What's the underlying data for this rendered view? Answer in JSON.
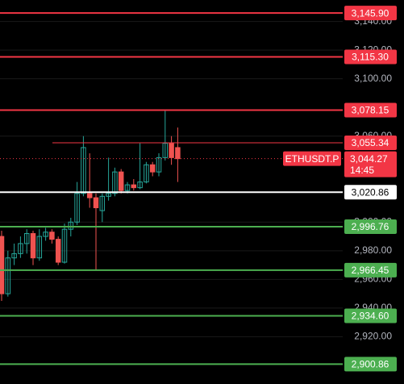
{
  "chart_data": {
    "type": "candlestick",
    "ylim": [
      2887,
      3155
    ],
    "yticks": [
      {
        "value": 3140,
        "label": "3,140.00"
      },
      {
        "value": 3120,
        "label": "3,120.00"
      },
      {
        "value": 3100,
        "label": "3,100.00"
      },
      {
        "value": 3060,
        "label": "3,060.00"
      },
      {
        "value": 3000,
        "label": "3,000.00"
      },
      {
        "value": 2980,
        "label": "2,980.00"
      },
      {
        "value": 2960,
        "label": "2,960.00"
      },
      {
        "value": 2940,
        "label": "2,940.00"
      },
      {
        "value": 2920,
        "label": "2,920.00"
      }
    ],
    "up_color": "#26a69a",
    "down_color": "#ef5350",
    "open": [
      2990,
      2950,
      2975,
      2978,
      2985,
      2992,
      2975,
      2990,
      2993,
      2988,
      2972,
      2995,
      3000,
      3020,
      3020,
      3017,
      3008,
      3018,
      3020,
      3035,
      3022,
      3026,
      3024,
      3028,
      3040,
      3035,
      3045,
      3055,
      3052
    ],
    "high": [
      2994,
      2980,
      2985,
      2990,
      2995,
      2994,
      2995,
      2996,
      2995,
      2990,
      2999,
      3003,
      3028,
      3060,
      3048,
      3020,
      3020,
      3045,
      3038,
      3037,
      3028,
      3030,
      3055,
      3042,
      3042,
      3048,
      3078,
      3060,
      3066
    ],
    "low": [
      2945,
      2948,
      2970,
      2975,
      2978,
      2970,
      2973,
      2987,
      2985,
      2970,
      2971,
      2990,
      2998,
      3018,
      3010,
      2966,
      3000,
      3015,
      3018,
      3020,
      3020,
      3022,
      3023,
      3027,
      3032,
      3032,
      3043,
      3040,
      3028
    ],
    "close": [
      2950,
      2975,
      2978,
      2985,
      2992,
      2975,
      2990,
      2993,
      2988,
      2972,
      2995,
      3000,
      3020,
      3052,
      3017,
      3010,
      3018,
      3020,
      3035,
      3022,
      3026,
      3024,
      3028,
      3040,
      3035,
      3045,
      3055,
      3045,
      3044.27
    ],
    "price_lines": [
      {
        "value": 3145.9,
        "label": "3,145.90",
        "color": "#f23645"
      },
      {
        "value": 3115.3,
        "label": "3,115.30",
        "color": "#f23645"
      },
      {
        "value": 3078.15,
        "label": "3,078.15",
        "color": "#f23645"
      },
      {
        "value": 3055.34,
        "label": "3,055.34",
        "color": "#f23645"
      },
      {
        "value": 3020.86,
        "label": "3,020.86",
        "color": "#ffffff"
      },
      {
        "value": 2996.76,
        "label": "2,996.76",
        "color": "#4caf50"
      },
      {
        "value": 2966.45,
        "label": "2,966.45",
        "color": "#4caf50"
      },
      {
        "value": 2934.6,
        "label": "2,934.60",
        "color": "#4caf50"
      },
      {
        "value": 2900.86,
        "label": "2,900.86",
        "color": "#4caf50"
      }
    ],
    "current": {
      "name": "ETHUSDT.P",
      "value": 3044.27,
      "label": "3,044.27",
      "countdown": "14:45",
      "color": "#f23645"
    }
  }
}
